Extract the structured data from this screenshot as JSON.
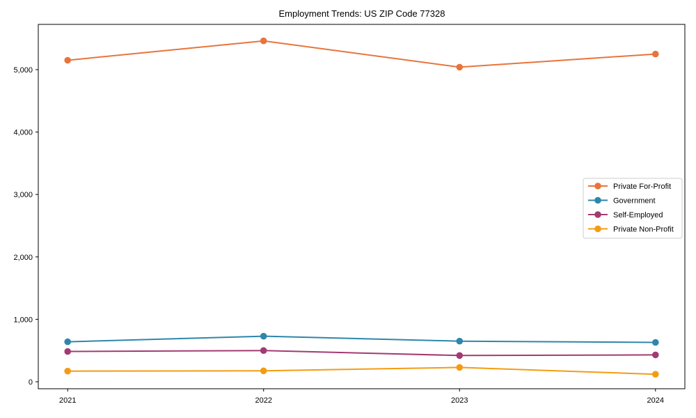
{
  "chart_data": {
    "type": "line",
    "title": "Employment Trends: US ZIP Code 77328",
    "xlabel": "",
    "ylabel": "",
    "x": [
      2021,
      2022,
      2023,
      2024
    ],
    "x_tick_labels": [
      "2021",
      "2022",
      "2023",
      "2024"
    ],
    "y_ticks": [
      0,
      1000,
      2000,
      3000,
      4000,
      5000
    ],
    "y_tick_labels": [
      "0",
      "1,000",
      "2,000",
      "3,000",
      "4,000",
      "5,000"
    ],
    "xlim": [
      2020.85,
      2024.15
    ],
    "ylim": [
      -112,
      5725
    ],
    "grid": false,
    "legend_position": "right",
    "background_color": "#ffffff",
    "axis_color": "#000000",
    "series": [
      {
        "name": "Private For-Profit",
        "color": "#E8743B",
        "values": [
          5150,
          5460,
          5040,
          5250
        ]
      },
      {
        "name": "Government",
        "color": "#2E86AB",
        "values": [
          640,
          730,
          650,
          630
        ]
      },
      {
        "name": "Self-Employed",
        "color": "#A23B72",
        "values": [
          485,
          500,
          420,
          430
        ]
      },
      {
        "name": "Private Non-Profit",
        "color": "#F39C12",
        "values": [
          170,
          175,
          230,
          120
        ]
      }
    ]
  }
}
